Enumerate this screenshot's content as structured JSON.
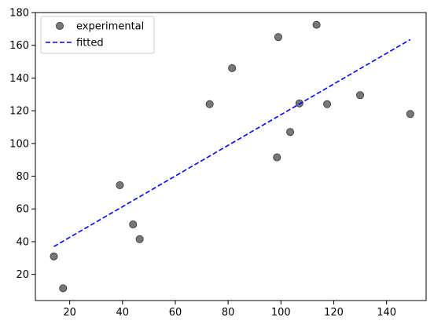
{
  "chart_data": {
    "type": "scatter",
    "title": "",
    "xlabel": "",
    "ylabel": "",
    "xlim": [
      7,
      155
    ],
    "ylim": [
      4,
      180
    ],
    "xticks": [
      20,
      40,
      60,
      80,
      100,
      120,
      140
    ],
    "yticks": [
      20,
      40,
      60,
      80,
      100,
      120,
      140,
      160,
      180
    ],
    "grid": false,
    "legend_position": "top-left",
    "series": [
      {
        "name": "experimental",
        "kind": "scatter",
        "color": "#555555",
        "marker": "circle",
        "points": [
          {
            "x": 14.0,
            "y": 31.0
          },
          {
            "x": 17.5,
            "y": 11.5
          },
          {
            "x": 39.0,
            "y": 74.5
          },
          {
            "x": 44.0,
            "y": 50.5
          },
          {
            "x": 46.5,
            "y": 41.5
          },
          {
            "x": 73.0,
            "y": 124.0
          },
          {
            "x": 81.5,
            "y": 146.0
          },
          {
            "x": 98.5,
            "y": 91.5
          },
          {
            "x": 99.0,
            "y": 165.0
          },
          {
            "x": 103.5,
            "y": 107.0
          },
          {
            "x": 107.0,
            "y": 124.5
          },
          {
            "x": 113.5,
            "y": 172.5
          },
          {
            "x": 117.5,
            "y": 124.0
          },
          {
            "x": 130.0,
            "y": 129.5
          },
          {
            "x": 149.0,
            "y": 118.0
          }
        ]
      },
      {
        "name": "fitted",
        "kind": "line",
        "color": "#0000ff",
        "linestyle": "dashed",
        "points": [
          {
            "x": 14.0,
            "y": 37.0
          },
          {
            "x": 149.0,
            "y": 163.5
          }
        ]
      }
    ]
  }
}
